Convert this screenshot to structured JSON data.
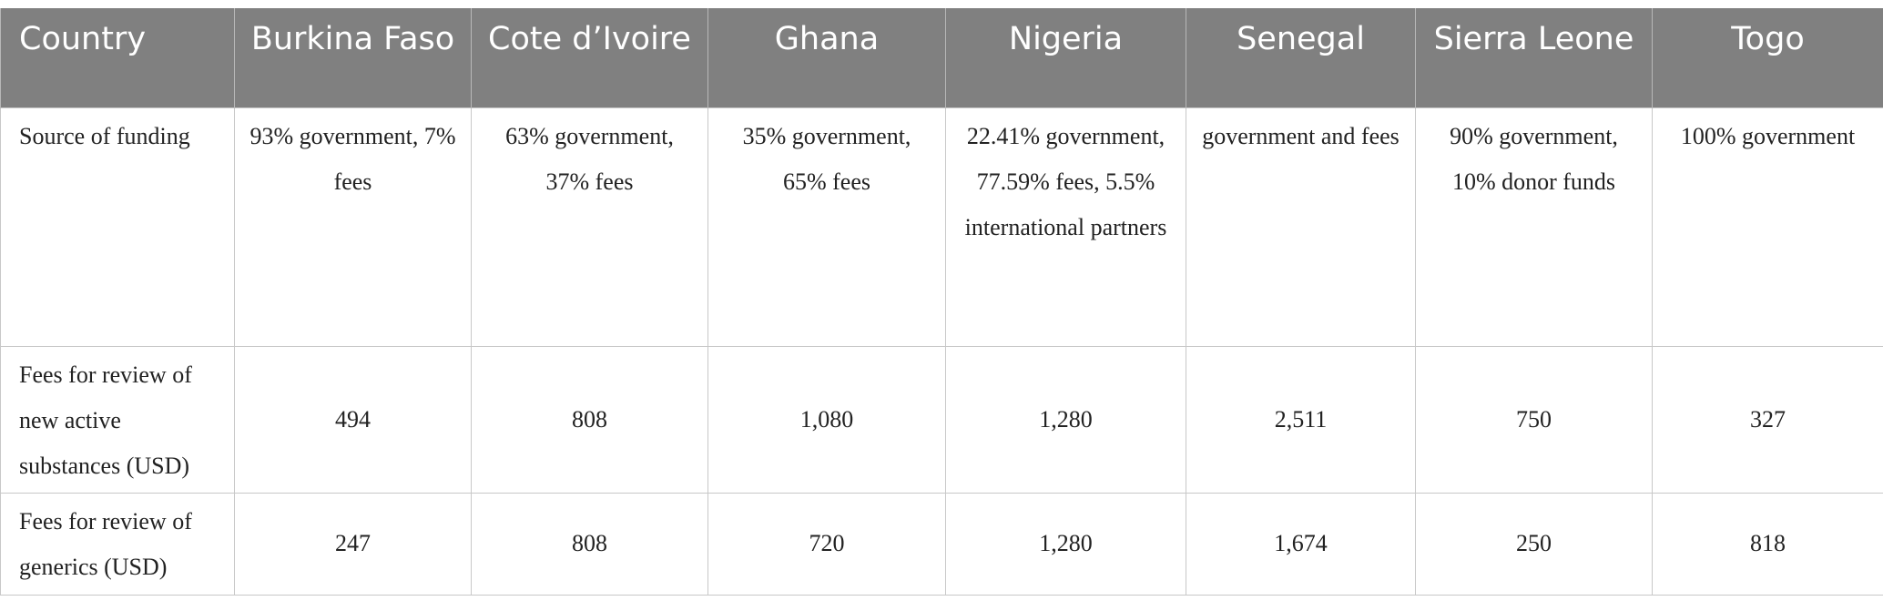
{
  "table": {
    "headers": [
      "Country",
      "Burkina Faso",
      "Cote d’Ivoire",
      "Ghana",
      "Nigeria",
      "Senegal",
      "Sierra Leone",
      "Togo"
    ],
    "rows": [
      {
        "label": "Source of funding",
        "cells": [
          "93% government, 7% fees",
          "63% government, 37% fees",
          "35% government, 65% fees",
          "22.41% government, 77.59% fees, 5.5% international partners",
          "government and fees",
          "90% government, 10% donor funds",
          "100% government"
        ]
      },
      {
        "label": "Fees for review of new active substances (USD)",
        "cells": [
          "494",
          "808",
          "1,080",
          "1,280",
          "2,511",
          "750",
          "327"
        ]
      },
      {
        "label": "Fees for review of generics (USD)",
        "cells": [
          "247",
          "808",
          "720",
          "1,280",
          "1,674",
          "250",
          "818"
        ]
      }
    ]
  },
  "colors": {
    "header_bg": "#808080",
    "header_text": "#ffffff",
    "grid": "#c8c8c8"
  }
}
